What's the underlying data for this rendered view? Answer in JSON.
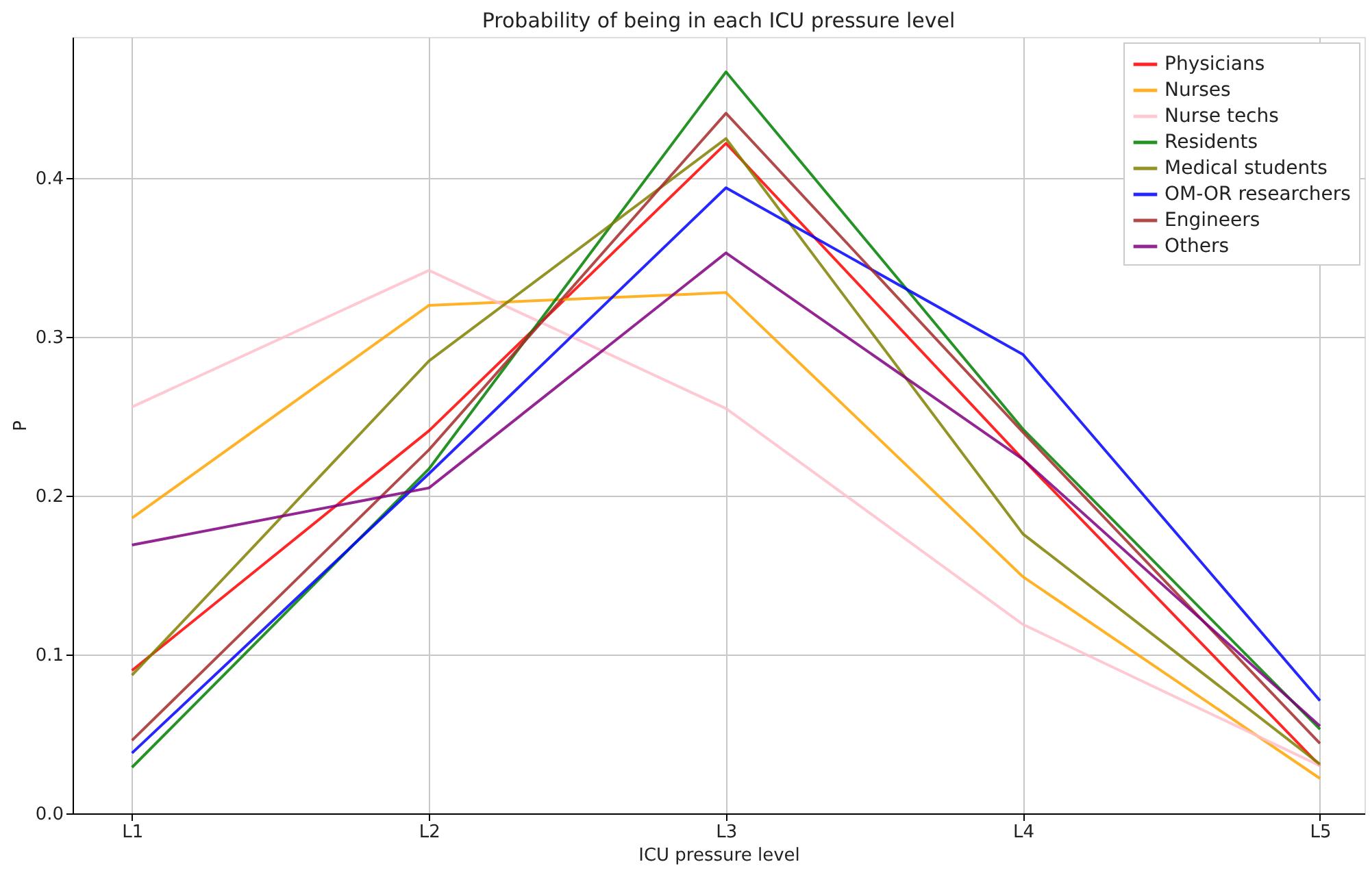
{
  "chart_data": {
    "type": "line",
    "title": "Probability of being in each ICU pressure level",
    "xlabel": "ICU pressure level",
    "ylabel": "P",
    "categories": [
      "L1",
      "L2",
      "L3",
      "L4",
      "L5"
    ],
    "series": [
      {
        "name": "Physicians",
        "color": "#ff0000",
        "values": [
          0.09,
          0.241,
          0.422,
          0.223,
          0.03
        ]
      },
      {
        "name": "Nurses",
        "color": "#ffa500",
        "values": [
          0.186,
          0.32,
          0.328,
          0.149,
          0.022
        ]
      },
      {
        "name": "Nurse techs",
        "color": "#ffc0cb",
        "values": [
          0.256,
          0.342,
          0.255,
          0.119,
          0.03
        ]
      },
      {
        "name": "Residents",
        "color": "#008000",
        "values": [
          0.029,
          0.217,
          0.467,
          0.242,
          0.053
        ]
      },
      {
        "name": "Medical students",
        "color": "#808000",
        "values": [
          0.087,
          0.285,
          0.425,
          0.176,
          0.031
        ]
      },
      {
        "name": "OM-OR researchers",
        "color": "#0000ff",
        "values": [
          0.038,
          0.214,
          0.394,
          0.289,
          0.071
        ]
      },
      {
        "name": "Engineers",
        "color": "#a52a2a",
        "values": [
          0.046,
          0.229,
          0.441,
          0.24,
          0.044
        ]
      },
      {
        "name": "Others",
        "color": "#800080",
        "values": [
          0.169,
          0.205,
          0.353,
          0.223,
          0.055
        ]
      }
    ],
    "ylim": [
      0,
      0.489
    ],
    "yticks": [
      {
        "value": 0,
        "label": "0.0"
      },
      {
        "value": 0.1,
        "label": "0.1"
      },
      {
        "value": 0.2,
        "label": "0.2"
      },
      {
        "value": 0.3,
        "label": "0.3"
      },
      {
        "value": 0.4,
        "label": "0.4"
      }
    ],
    "grid": true,
    "legend": "top right",
    "line_style": "solid"
  }
}
